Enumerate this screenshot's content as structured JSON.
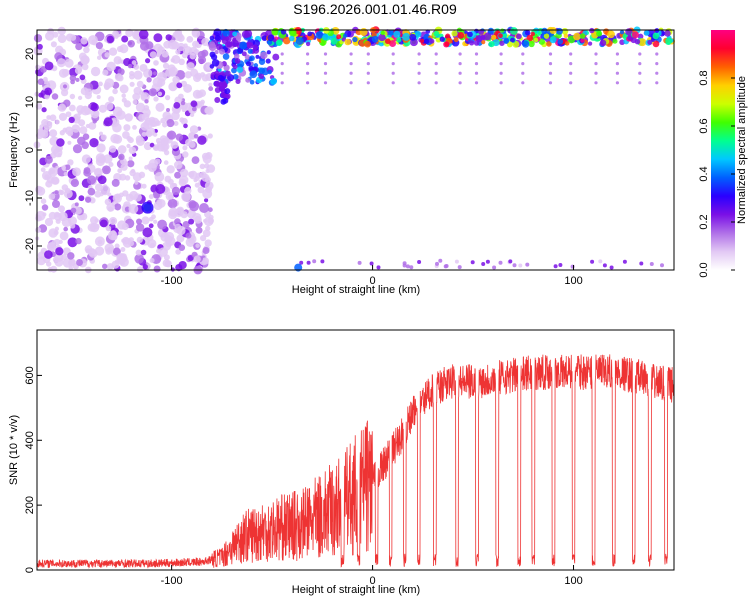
{
  "title": "S196.2026.001.01.46.R09",
  "chart_data": [
    {
      "type": "heatmap",
      "xlabel": "Height of straight line (km)",
      "ylabel": "Frequency (Hz)",
      "xlim": [
        -167,
        150
      ],
      "ylim": [
        -25,
        25
      ],
      "x_ticks": [
        -100,
        0,
        100
      ],
      "y_ticks": [
        -20,
        -10,
        0,
        10,
        20
      ],
      "colorbar": {
        "label": "Normalized spectral amplitude",
        "range": [
          0,
          1
        ],
        "ticks": [
          0.0,
          0.2,
          0.4,
          0.6,
          0.8
        ],
        "colors": [
          "#ffffff",
          "#e2c8f4",
          "#b070e8",
          "#7a10e6",
          "#2a00ff",
          "#0060ff",
          "#00c8ff",
          "#00ff90",
          "#40ff00",
          "#ccff00",
          "#ffd000",
          "#ff6000",
          "#ff0030",
          "#ff0080"
        ]
      },
      "regions": [
        {
          "description_x_range": [
            -167,
            -80
          ],
          "freq_range": [
            -25,
            25
          ],
          "amplitude": "scattered low (0.05-0.2), isolated 0.5 peak near x=-112, f=-12"
        },
        {
          "description_x_range": [
            -80,
            -50
          ],
          "freq_range": [
            15,
            25
          ],
          "amplitude": "rising band 0.2-0.5"
        },
        {
          "description_x_range": [
            -50,
            150
          ],
          "freq_range": [
            22,
            25
          ],
          "amplitude": "strong band near +23 Hz, peaks 0.8-1.0"
        }
      ]
    },
    {
      "type": "line",
      "xlabel": "Height of straight line (km)",
      "ylabel": "SNR (10 * v/v)",
      "xlim": [
        -167,
        150
      ],
      "ylim": [
        0,
        740
      ],
      "x_ticks": [
        -100,
        0,
        100
      ],
      "y_ticks": [
        0,
        200,
        400,
        600
      ],
      "series": [
        {
          "name": "SNR",
          "color": "#ee3333",
          "trend_x": [
            -167,
            -140,
            -110,
            -85,
            -75,
            -65,
            -55,
            -45,
            -35,
            -25,
            -15,
            -5,
            0,
            5,
            10,
            15,
            20,
            25,
            30,
            40,
            50,
            60,
            70,
            80,
            90,
            100,
            110,
            120,
            130,
            140,
            150
          ],
          "trend_y": [
            20,
            20,
            20,
            25,
            40,
            100,
            120,
            130,
            140,
            170,
            200,
            250,
            280,
            320,
            370,
            420,
            480,
            520,
            560,
            580,
            580,
            590,
            600,
            610,
            610,
            610,
            610,
            610,
            600,
            580,
            570
          ],
          "dropouts_x": [
            -15,
            -7,
            2,
            9,
            16,
            23,
            31,
            42,
            52,
            62,
            73,
            80,
            90,
            100,
            110,
            120,
            130,
            138,
            146
          ]
        }
      ]
    }
  ]
}
